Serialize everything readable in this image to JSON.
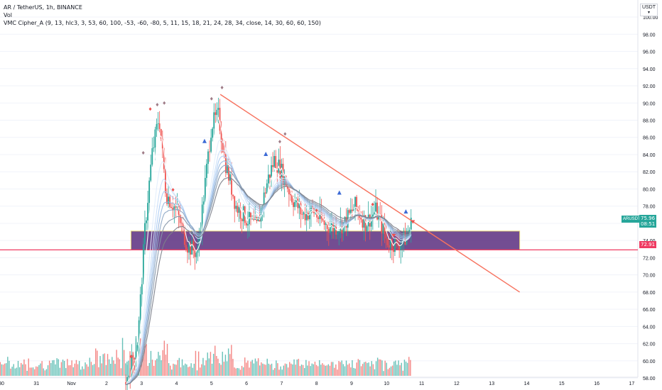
{
  "legend": {
    "symbol_line": "AR / TetherUS, 1h, BINANCE",
    "vol_line": "Vol",
    "indicator_line": "VMC Cipher_A (9, 13, hlc3, 3, 53, 60, 100, -53, -60, -80, 5, 11, 15, 18, 21, 24, 28, 34, close, 14, 30, 60, 60, 150)"
  },
  "price_axis": {
    "currency": "USDT",
    "ticks": [
      "100.00",
      "98.00",
      "96.00",
      "94.00",
      "92.00",
      "90.00",
      "88.00",
      "86.00",
      "84.00",
      "82.00",
      "80.00",
      "78.00",
      "76.00",
      "74.00",
      "72.00",
      "70.00",
      "68.00",
      "66.00",
      "64.00",
      "62.00",
      "60.00",
      "58.00"
    ]
  },
  "time_axis": {
    "ticks": [
      "30",
      "31",
      "Nov",
      "2",
      "3",
      "4",
      "5",
      "6",
      "7",
      "8",
      "9",
      "10",
      "11",
      "12",
      "13",
      "14",
      "15",
      "16",
      "17"
    ]
  },
  "markers": {
    "symbol_tag": "ARUSDT",
    "last_price": "75.96",
    "countdown": "08:51",
    "support_price": "72.91"
  },
  "colors": {
    "up": "#26a69a",
    "down": "#ef5350",
    "trendline": "#f7725e",
    "support": "#ef3b62",
    "zone_fill": "#5b2e7f",
    "zone_border": "#e8d97a"
  },
  "chart_data": {
    "type": "candlestick",
    "symbol": "AR / TetherUS",
    "interval": "1h",
    "exchange": "BINANCE",
    "y_range": [
      57,
      101
    ],
    "x_range": [
      "Oct 30",
      "Nov 17"
    ],
    "series": [
      {
        "name": "price",
        "x": [
          2.6,
          2.9,
          3.1,
          3.3,
          3.5,
          3.7,
          4.0,
          4.3,
          4.6,
          4.8,
          5.0,
          5.2,
          5.4,
          5.7,
          6.0,
          6.3,
          6.6,
          6.8,
          7.0,
          7.3,
          7.6,
          7.9,
          8.2,
          8.5,
          8.8,
          9.1,
          9.4,
          9.7,
          10.0,
          10.3,
          10.6,
          10.7
        ],
        "values": [
          58.0,
          62.5,
          75.5,
          84.0,
          88.5,
          79.5,
          77.5,
          73.5,
          72.5,
          80.0,
          87.5,
          88.5,
          83.0,
          78.0,
          76.5,
          75.5,
          81.0,
          83.5,
          82.0,
          79.0,
          77.0,
          77.5,
          76.0,
          75.5,
          76.0,
          78.0,
          76.0,
          77.5,
          74.0,
          73.5,
          74.5,
          75.96
        ]
      }
    ],
    "zones": [
      {
        "name": "support zone",
        "y_low": 72.91,
        "y_high": 75.1,
        "x_start": 2.7,
        "x_end": 13.8
      }
    ],
    "horizontal_lines": [
      72.91
    ],
    "trendline": {
      "from": {
        "x": 5.25,
        "y": 91.0
      },
      "to": {
        "x": 13.8,
        "y": 68.0
      }
    }
  }
}
